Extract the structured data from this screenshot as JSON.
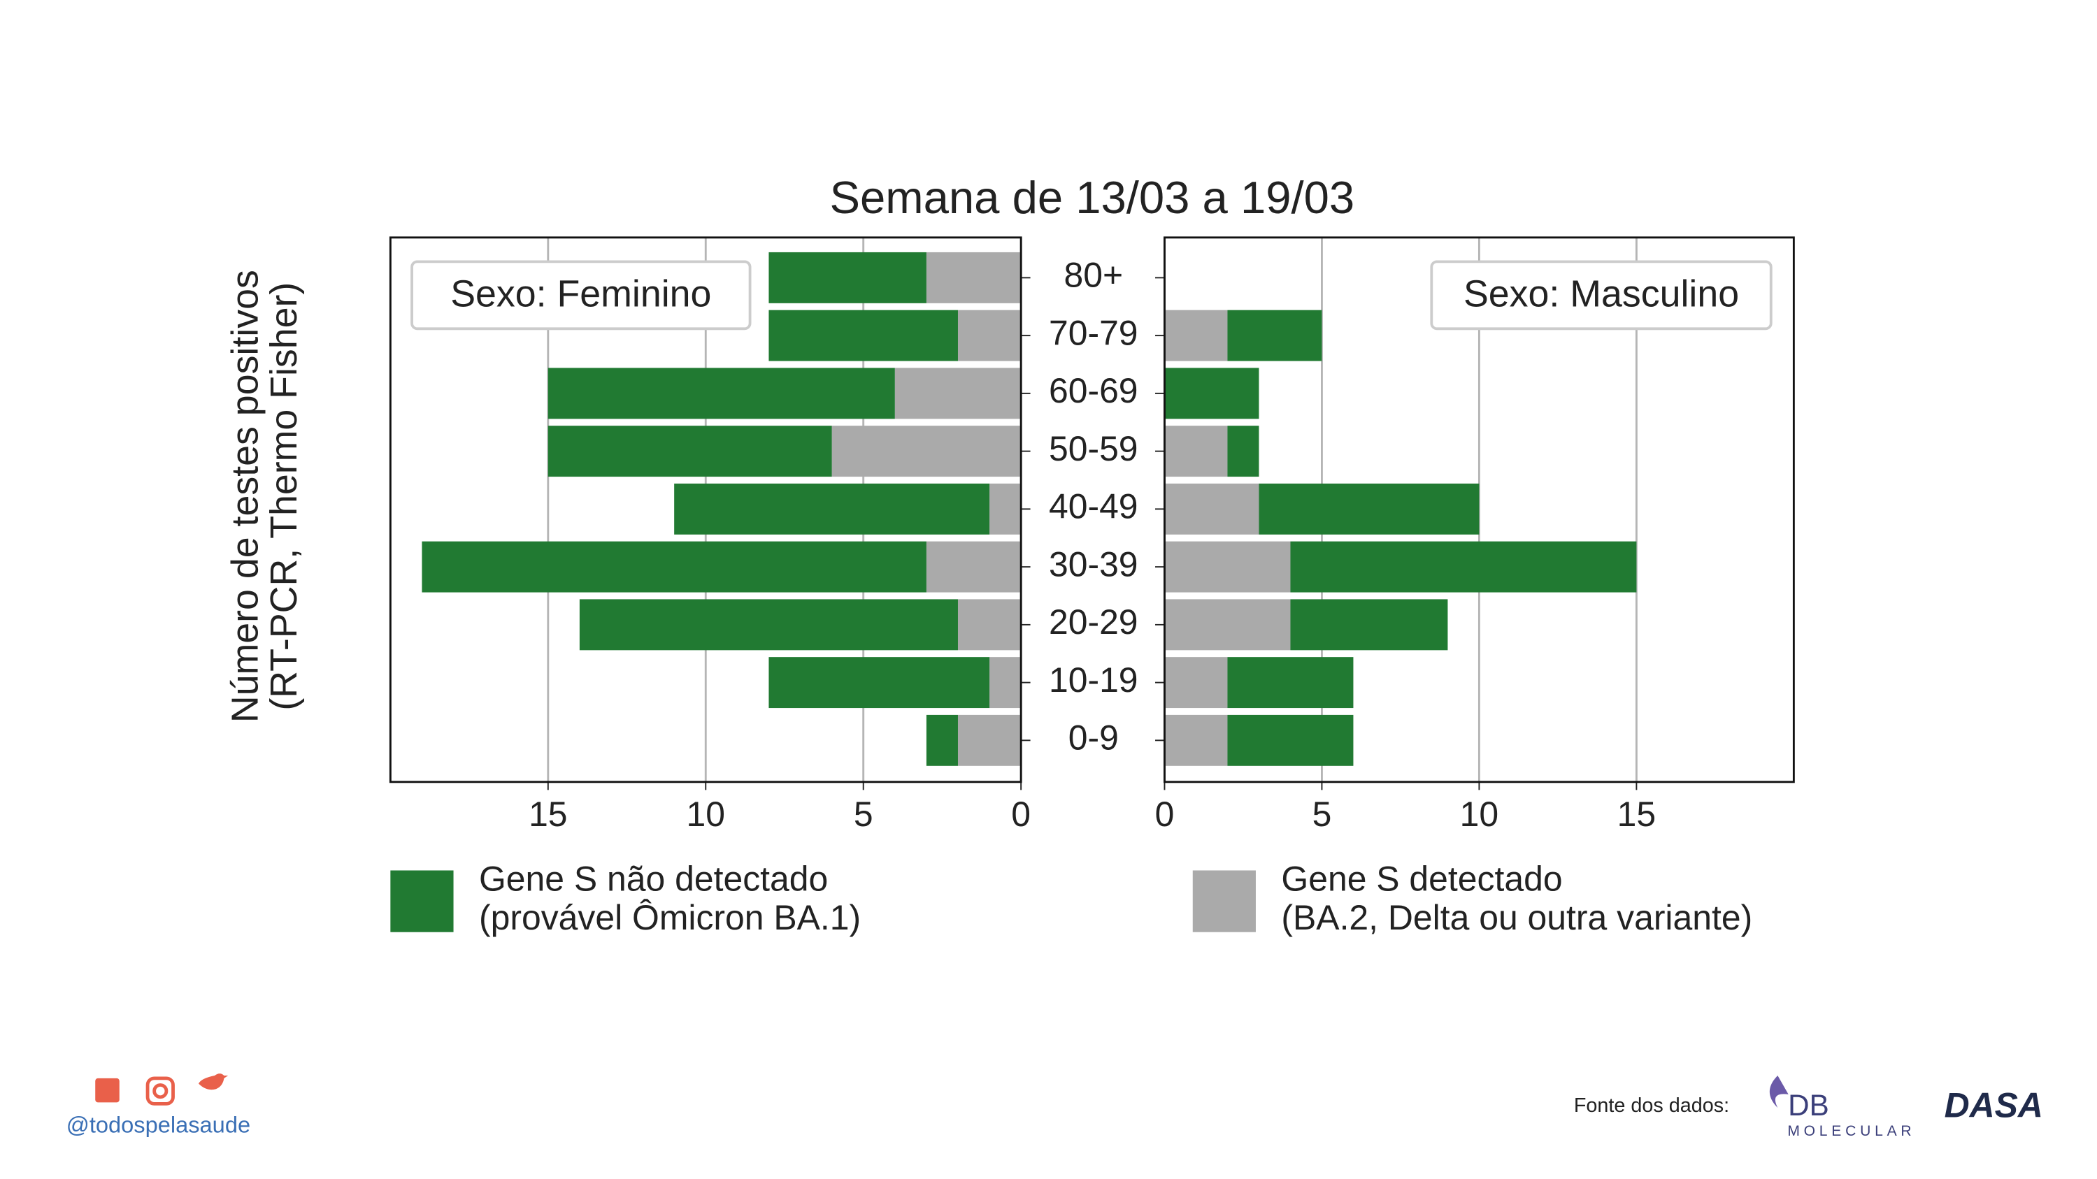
{
  "chart_data": {
    "type": "bar",
    "title": "Semana de 13/03 a 19/03",
    "ylabel": "Número de testes positivos\n(RT-PCR, Thermo Fisher)",
    "categories": [
      "0-9",
      "10-19",
      "20-29",
      "30-39",
      "40-49",
      "50-59",
      "60-69",
      "70-79",
      "80+"
    ],
    "series": [
      {
        "name": "Gene S não detectado\n(provável Ômicron BA.1)",
        "color": "#217a32"
      },
      {
        "name": "Gene S detectado\n(BA.2, Delta ou outra variante)",
        "color": "#aaaaaa"
      }
    ],
    "grid": true,
    "panels": [
      {
        "label": "Sexo: Feminino",
        "reversed": true,
        "xlim": [
          0,
          20
        ],
        "xticks": [
          0,
          5,
          10,
          15
        ],
        "values": [
          [
            1,
            7,
            12,
            16,
            10,
            9,
            11,
            6,
            5
          ],
          [
            2,
            1,
            2,
            3,
            1,
            6,
            4,
            2,
            3
          ]
        ]
      },
      {
        "label": "Sexo: Masculino",
        "reversed": false,
        "xlim": [
          0,
          20
        ],
        "xticks": [
          0,
          5,
          10,
          15
        ],
        "values": [
          [
            4,
            4,
            5,
            11,
            7,
            1,
            3,
            3,
            0
          ],
          [
            2,
            2,
            4,
            4,
            3,
            2,
            0,
            2,
            0
          ]
        ]
      }
    ]
  },
  "footer": {
    "handle": "@todospelasaude",
    "source_label": "Fonte dos dados:",
    "logos": [
      "DB",
      "MOLECULAR",
      "DASA"
    ]
  }
}
